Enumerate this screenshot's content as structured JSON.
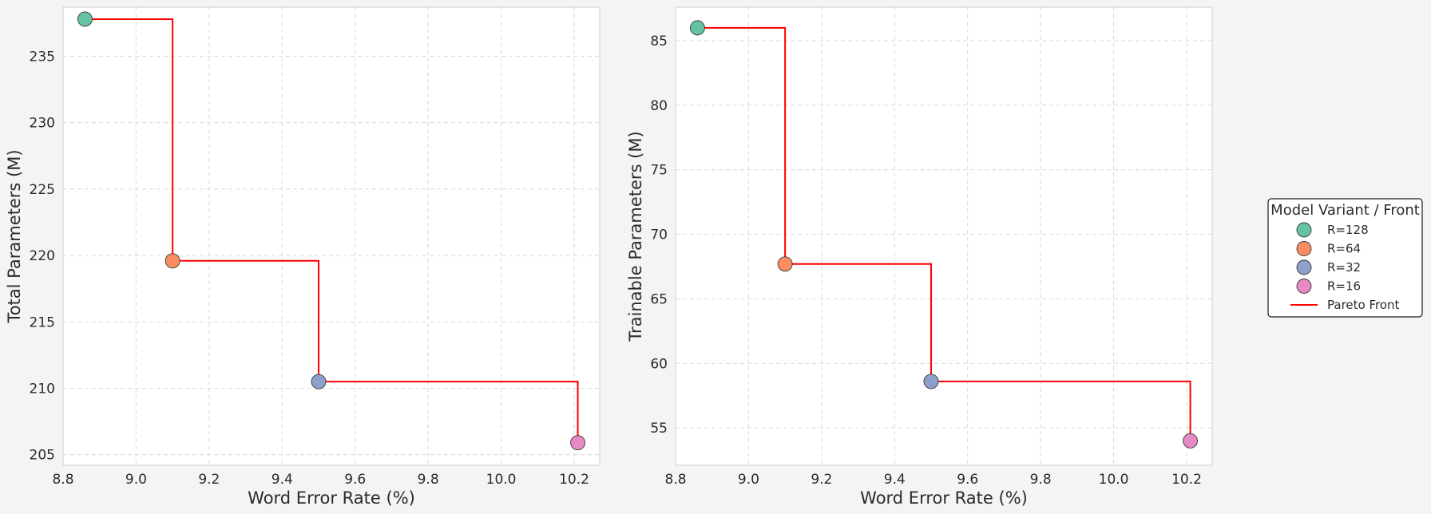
{
  "chart_data": [
    {
      "type": "scatter",
      "xlabel": "Word Error Rate (%)",
      "ylabel": "Total Parameters (M)",
      "xlim": [
        8.8,
        10.27
      ],
      "ylim": [
        204.2,
        238.7
      ],
      "xticks": [
        "8.8",
        "9.0",
        "9.2",
        "9.4",
        "9.6",
        "9.8",
        "10.0",
        "10.2"
      ],
      "yticks": [
        "205",
        "210",
        "215",
        "220",
        "225",
        "230",
        "235"
      ],
      "grid": true,
      "series": [
        {
          "name": "R=128",
          "x": [
            8.86
          ],
          "y": [
            237.8
          ]
        },
        {
          "name": "R=64",
          "x": [
            9.1
          ],
          "y": [
            219.6
          ]
        },
        {
          "name": "R=32",
          "x": [
            9.5
          ],
          "y": [
            210.5
          ]
        },
        {
          "name": "R=16",
          "x": [
            10.21
          ],
          "y": [
            205.9
          ]
        }
      ],
      "pareto_front": {
        "name": "Pareto Front",
        "x": [
          8.86,
          9.1,
          9.5,
          10.21
        ],
        "y": [
          237.8,
          219.6,
          210.5,
          205.9
        ]
      }
    },
    {
      "type": "scatter",
      "xlabel": "Word Error Rate (%)",
      "ylabel": "Trainable Parameters (M)",
      "xlim": [
        8.8,
        10.27
      ],
      "ylim": [
        52.1,
        87.6
      ],
      "xticks": [
        "8.8",
        "9.0",
        "9.2",
        "9.4",
        "9.6",
        "9.8",
        "10.0",
        "10.2"
      ],
      "yticks": [
        "55",
        "60",
        "65",
        "70",
        "75",
        "80",
        "85"
      ],
      "grid": true,
      "series": [
        {
          "name": "R=128",
          "x": [
            8.86
          ],
          "y": [
            86.0
          ]
        },
        {
          "name": "R=64",
          "x": [
            9.1
          ],
          "y": [
            67.7
          ]
        },
        {
          "name": "R=32",
          "x": [
            9.5
          ],
          "y": [
            58.6
          ]
        },
        {
          "name": "R=16",
          "x": [
            10.21
          ],
          "y": [
            54.0
          ]
        }
      ],
      "pareto_front": {
        "name": "Pareto Front",
        "x": [
          8.86,
          9.1,
          9.5,
          10.21
        ],
        "y": [
          86.0,
          67.7,
          58.6,
          54.0
        ]
      }
    }
  ],
  "legend": {
    "title": "Model Variant / Front",
    "placement": "right",
    "items": [
      "R=128",
      "R=64",
      "R=32",
      "R=16",
      "Pareto Front"
    ]
  },
  "colors": {
    "R=128": "#66c2a5",
    "R=64": "#fc8d62",
    "R=32": "#8da0cb",
    "R=16": "#e78ac3",
    "Pareto Front": "#ff0000"
  }
}
